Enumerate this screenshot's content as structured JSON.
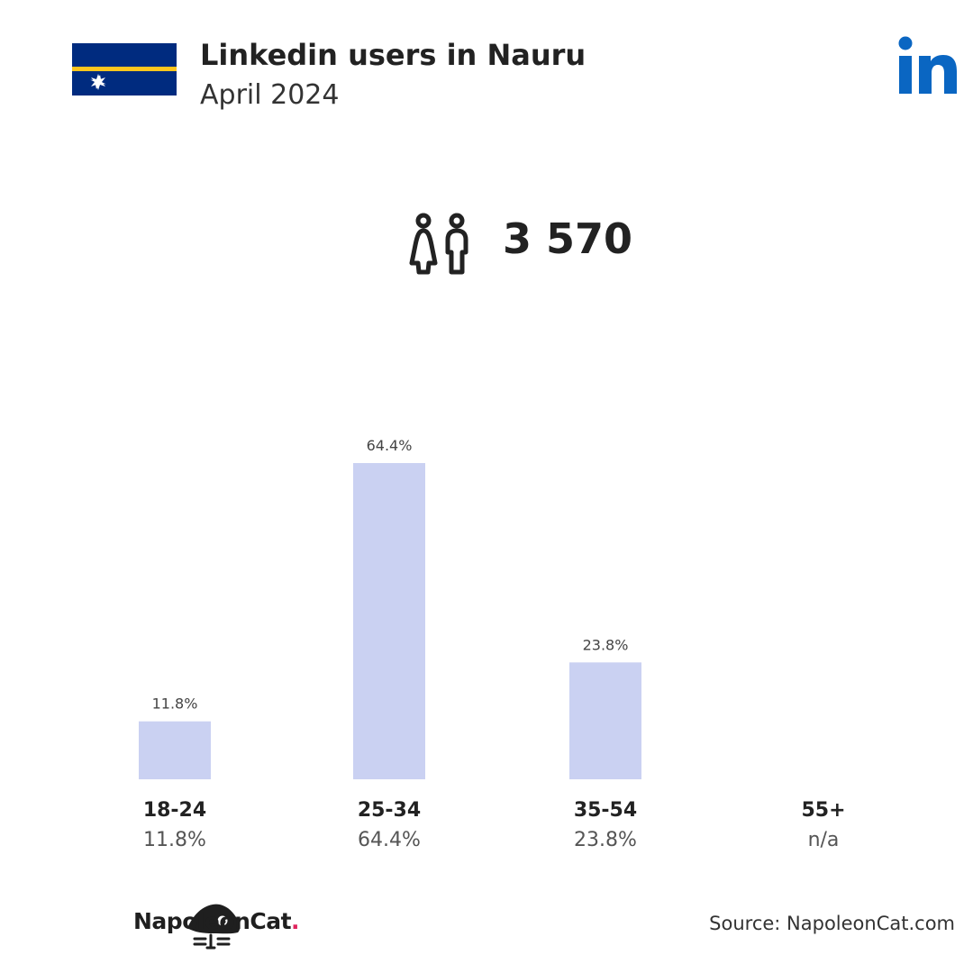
{
  "header": {
    "title": "Linkedin users in Nauru",
    "subtitle": "April 2024"
  },
  "flag": {
    "country": "Nauru",
    "colors": {
      "blue": "#002b7f",
      "yellow": "#ffc61e",
      "star": "#ffffff"
    }
  },
  "logo": {
    "icon": "linkedin-icon",
    "color": "#0a66c2"
  },
  "total": {
    "icon": "people-icon",
    "value": "3 570"
  },
  "chart_data": {
    "type": "bar",
    "categories": [
      "18-24",
      "25-34",
      "35-54",
      "55+"
    ],
    "values": [
      11.8,
      64.4,
      23.8,
      null
    ],
    "value_labels": [
      "11.8%",
      "64.4%",
      "23.8%",
      "n/a"
    ],
    "bar_color": "#cad1f2",
    "ylim": [
      0,
      64.4
    ]
  },
  "footer": {
    "brand_icon": "napoleoncat-icon",
    "brand_name": "NapoleonCat",
    "brand_dot": ".",
    "source": "Source: NapoleonCat.com"
  }
}
